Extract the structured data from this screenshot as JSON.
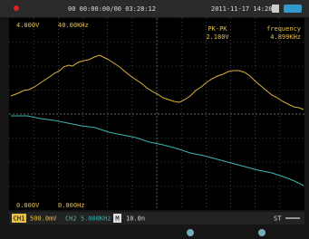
{
  "top_bar": {
    "time": "00 00:00:00/00 03:28:12",
    "date": "2011-11-17 14:28"
  },
  "channel1": {
    "volts": "4.000V",
    "freq": "40.00KHz"
  },
  "measure": {
    "pk_label": "PK-PK",
    "pk_value": "2.180V",
    "freq_label": "frequency",
    "freq_value": "4.899KHz"
  },
  "channel2": {
    "volts": "0.000V",
    "freq": "0.000Hz"
  },
  "bottom_bar": {
    "ch1": "CH1",
    "ch1_scale": "500.0mV",
    "ch2": "CH2 5.000KHz",
    "m": "M",
    "timebase": "10.0n",
    "trigger": "ST"
  }
}
